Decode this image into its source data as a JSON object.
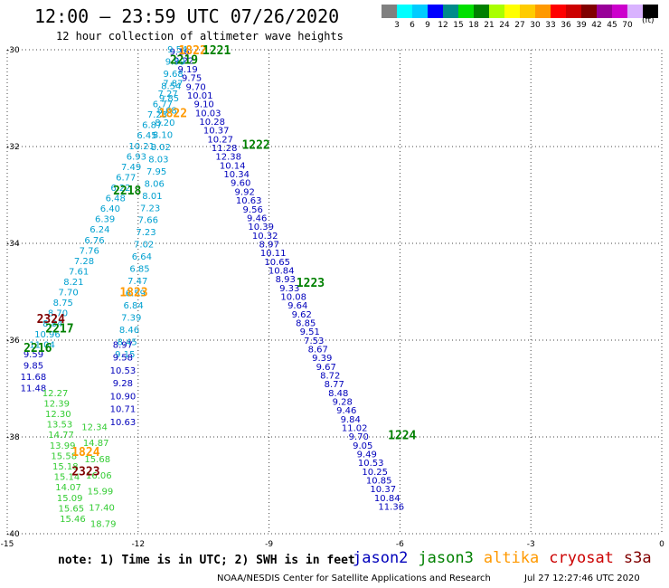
{
  "title": "12:00 – 23:59 UTC 07/26/2020",
  "subtitle": "12 hour collection of altimeter wave heights",
  "legend": {
    "colors": [
      "#808080",
      "#00ffff",
      "#00ccff",
      "#0000ff",
      "#008b8b",
      "#00e000",
      "#008000",
      "#aaff00",
      "#ffff00",
      "#ffcc00",
      "#ff9900",
      "#ff0000",
      "#cc0000",
      "#800000",
      "#990099",
      "#cc00cc",
      "#d9b3ff",
      "#000000"
    ],
    "labels": [
      "3",
      "6",
      "9",
      "12",
      "15",
      "18",
      "21",
      "24",
      "27",
      "30",
      "33",
      "36",
      "39",
      "42",
      "45",
      "70"
    ],
    "unit": "(ft)"
  },
  "axes": {
    "x_ticks": [
      "-15",
      "-12",
      "-9",
      "-6",
      "-3",
      "0"
    ],
    "y_ticks": [
      "-30",
      "-32",
      "-34",
      "-36",
      "-38",
      "-40"
    ],
    "xlim": [
      -15,
      0
    ],
    "ylim": [
      -40,
      -30
    ]
  },
  "satellite_colors": {
    "jason2": "#0000bb",
    "jason3": "#008000",
    "altika": "#ff9900",
    "cryosat": "#cc0000",
    "s3a": "#800000",
    "swh_lightblue": "#00b0e0",
    "swh_lightgreen": "#55dd33"
  },
  "tracks": [
    {
      "name": "track-a",
      "sat": "jason2",
      "color": "#0000bb",
      "start": [
        -11.05,
        -30.05
      ],
      "end": [
        -6.2,
        -39.45
      ],
      "values": [
        "9.16",
        "9.22",
        "9.19",
        "9.75",
        "9.70",
        "10.01",
        "9.10",
        "10.03",
        "10.28",
        "10.37",
        "10.27",
        "11.28",
        "12.38",
        "10.14",
        "10.34",
        "9.60",
        "9.92",
        "10.63",
        "9.56",
        "9.46",
        "10.39",
        "10.32",
        "8.97",
        "10.11",
        "10.65",
        "10.84",
        "8.93",
        "9.33",
        "10.08",
        "9.64",
        "9.62",
        "8.85",
        "9.51",
        "7.53",
        "8.67",
        "9.39",
        "9.67",
        "8.72",
        "8.77",
        "8.48",
        "9.28",
        "9.46",
        "9.84",
        "11.02",
        "9.70",
        "9.05",
        "9.49",
        "10.53",
        "10.25",
        "10.85",
        "10.37",
        "10.84",
        "11.36"
      ]
    },
    {
      "name": "track-b",
      "sat": "jason3",
      "color": "#00a0d0",
      "start": [
        -11.1,
        -30.0
      ],
      "end": [
        -12.3,
        -36.3
      ],
      "values": [
        "9.54",
        "9.99",
        "9.68",
        "8.54",
        "9.85",
        "8.68",
        "8.20",
        "8.10",
        "8.02",
        "8.03",
        "7.95",
        "8.06",
        "8.01",
        "7.23",
        "7.66",
        "7.23",
        "7.02",
        "6.64",
        "6.85",
        "7.47",
        "6.59",
        "6.84",
        "7.39",
        "8.46",
        "8.45",
        "9.15"
      ]
    },
    {
      "name": "track-c",
      "sat": "jason3",
      "color": "#00a0d0",
      "start": [
        -11.2,
        -30.7
      ],
      "end": [
        -14.2,
        -36.1
      ],
      "values": [
        "7.87",
        "7.27",
        "6.77",
        "7.23",
        "6.87",
        "6.45",
        "10.21",
        "6.93",
        "7.49",
        "6.77",
        "6.22",
        "6.48",
        "6.40",
        "6.39",
        "6.24",
        "6.76",
        "7.76",
        "7.28",
        "7.61",
        "8.21",
        "7.70",
        "8.75",
        "8.70",
        "8.84",
        "10.96",
        "11.04"
      ]
    },
    {
      "name": "track-d",
      "sat": "jason2",
      "color": "#0000bb",
      "start": [
        -14.4,
        -36.3
      ],
      "end": [
        -14.4,
        -37.0
      ],
      "values": [
        "9.59",
        "9.85",
        "11.68",
        "11.48"
      ]
    },
    {
      "name": "track-e",
      "sat": "jason2",
      "color": "#0000bb",
      "start": [
        -12.35,
        -36.1
      ],
      "end": [
        -12.35,
        -37.7
      ],
      "values": [
        "8.97",
        "9.58",
        "10.53",
        "9.28",
        "10.90",
        "10.71",
        "10.63"
      ]
    },
    {
      "name": "track-f",
      "sat": "jason3",
      "color": "#33cc33",
      "start": [
        -13.9,
        -37.1
      ],
      "end": [
        -13.5,
        -39.7
      ],
      "values": [
        "12.27",
        "12.39",
        "12.30",
        "13.53",
        "14.77",
        "13.99",
        "15.58",
        "15.18",
        "15.14",
        "14.07",
        "15.09",
        "15.65",
        "15.46"
      ]
    },
    {
      "name": "track-g",
      "sat": "jason3",
      "color": "#33cc33",
      "start": [
        -13.0,
        -37.8
      ],
      "end": [
        -12.8,
        -39.8
      ],
      "values": [
        "12.34",
        "14.87",
        "15.68",
        "16.06",
        "15.99",
        "17.40",
        "18.79"
      ]
    }
  ],
  "time_labels": [
    {
      "text": "1822",
      "sat": "altika",
      "color": "#ff9900",
      "lon": -10.75,
      "lat": -30.0
    },
    {
      "text": "1221",
      "sat": "jason3",
      "color": "#008000",
      "lon": -10.2,
      "lat": -30.0
    },
    {
      "text": "2219",
      "sat": "jason3",
      "color": "#008000",
      "lon": -10.95,
      "lat": -30.2
    },
    {
      "text": "1822",
      "sat": "altika",
      "color": "#ff9900",
      "lon": -11.2,
      "lat": -31.3
    },
    {
      "text": "1222",
      "sat": "jason2",
      "color": "#008000",
      "lon": -9.3,
      "lat": -31.95
    },
    {
      "text": "2218",
      "sat": "jason3",
      "color": "#008000",
      "lon": -12.25,
      "lat": -32.9
    },
    {
      "text": "1823",
      "sat": "altika",
      "color": "#ff9900",
      "lon": -12.1,
      "lat": -35.0
    },
    {
      "text": "1223",
      "sat": "jason2",
      "color": "#008000",
      "lon": -8.05,
      "lat": -34.8
    },
    {
      "text": "2324",
      "sat": "cryosat",
      "color": "#800000",
      "lon": -14.0,
      "lat": -35.55
    },
    {
      "text": "2217",
      "sat": "jason3",
      "color": "#008000",
      "lon": -13.8,
      "lat": -35.75
    },
    {
      "text": "2216",
      "sat": "jason3",
      "color": "#008000",
      "lon": -14.3,
      "lat": -36.15
    },
    {
      "text": "1224",
      "sat": "jason2",
      "color": "#008000",
      "lon": -5.95,
      "lat": -37.95
    },
    {
      "text": "1824",
      "sat": "altika",
      "color": "#ff9900",
      "lon": -13.2,
      "lat": -38.3
    },
    {
      "text": "2323",
      "sat": "cryosat",
      "color": "#800000",
      "lon": -13.2,
      "lat": -38.7
    }
  ],
  "note": "note: 1) Time is in UTC; 2) SWH is in feet",
  "satellites": [
    {
      "label": "jason2",
      "color": "#0000bb"
    },
    {
      "label": "jason3",
      "color": "#008000"
    },
    {
      "label": "altika",
      "color": "#ff9900"
    },
    {
      "label": "cryosat",
      "color": "#cc0000"
    },
    {
      "label": "s3a",
      "color": "#800000"
    }
  ],
  "credit": "NOAA/NESDIS Center for Satellite Applications and Research",
  "timestamp": "Jul 27 12:27:46 UTC 2020"
}
